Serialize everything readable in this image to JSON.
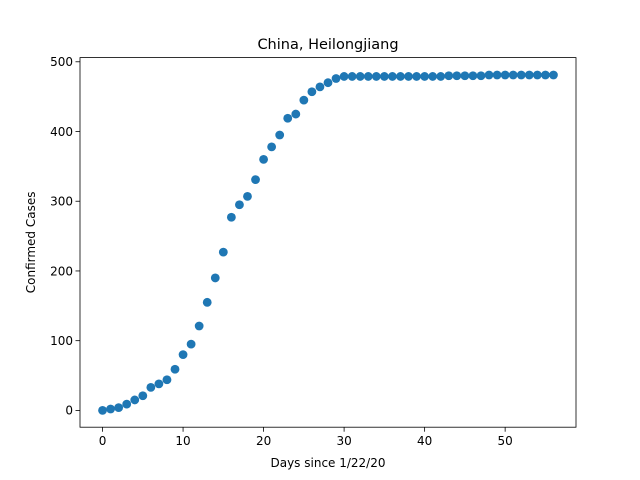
{
  "chart_data": {
    "type": "scatter",
    "title": "China, Heilongjiang",
    "xlabel": "Days since 1/22/20",
    "ylabel": "Confirmed Cases",
    "xlim": [
      -2.8,
      58.8
    ],
    "ylim": [
      -24.1,
      506
    ],
    "xticks": [
      0,
      10,
      20,
      30,
      40,
      50
    ],
    "yticks": [
      0,
      100,
      200,
      300,
      400,
      500
    ],
    "grid": false,
    "marker_color": "#1f77b4",
    "x": [
      0,
      1,
      2,
      3,
      4,
      5,
      6,
      7,
      8,
      9,
      10,
      11,
      12,
      13,
      14,
      15,
      16,
      17,
      18,
      19,
      20,
      21,
      22,
      23,
      24,
      25,
      26,
      27,
      28,
      29,
      30,
      31,
      32,
      33,
      34,
      35,
      36,
      37,
      38,
      39,
      40,
      41,
      42,
      43,
      44,
      45,
      46,
      47,
      48,
      49,
      50,
      51,
      52,
      53,
      54,
      55,
      56
    ],
    "y": [
      0,
      2,
      4,
      9,
      15,
      21,
      33,
      38,
      44,
      59,
      80,
      95,
      121,
      155,
      190,
      227,
      277,
      295,
      307,
      331,
      360,
      378,
      395,
      419,
      425,
      445,
      457,
      464,
      470,
      476,
      479,
      479,
      479,
      479,
      479,
      479,
      479,
      479,
      479,
      479,
      479,
      479,
      479,
      480,
      480,
      480,
      480,
      480,
      481,
      481,
      481,
      481,
      481,
      481,
      481,
      481,
      481
    ]
  }
}
